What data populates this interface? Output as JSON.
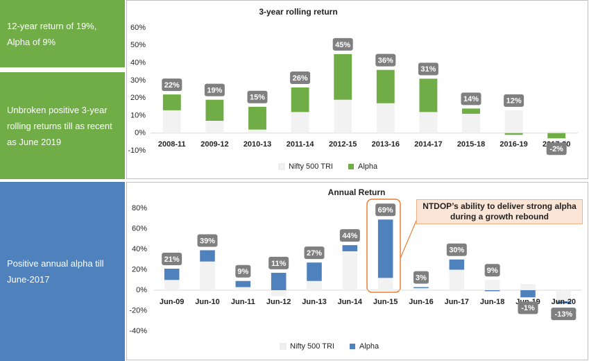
{
  "notes": [
    "12-year return of 19%,  Alpha of 9%",
    "Unbroken positive 3-year rolling returns till as recent as June 2019",
    "Positive annual alpha till June-2017"
  ],
  "chart_data": [
    {
      "type": "bar",
      "stacked": true,
      "title": "3-year rolling return",
      "categories": [
        "2008-11",
        "2009-12",
        "2010-13",
        "2011-14",
        "2012-15",
        "2013-16",
        "2014-17",
        "2015-18",
        "2016-19",
        "2017-20"
      ],
      "series": [
        {
          "name": "Nifty 500 TRI",
          "color": "#f2f2f2",
          "values": [
            13,
            7,
            2,
            12,
            19,
            17,
            12,
            11,
            13,
            1
          ]
        },
        {
          "name": "Alpha",
          "color": "#70ad47",
          "values": [
            9,
            12,
            13,
            14,
            26,
            19,
            19,
            3,
            -1,
            -3
          ]
        }
      ],
      "totals": [
        22,
        19,
        15,
        26,
        45,
        36,
        31,
        14,
        12,
        -2
      ],
      "total_labels": [
        "22%",
        "19%",
        "15%",
        "26%",
        "45%",
        "36%",
        "31%",
        "14%",
        "12%",
        "-2%"
      ],
      "ylim": [
        -10,
        60
      ],
      "yticks": [
        {
          "value": -10,
          "label": "-10%"
        },
        {
          "value": 0,
          "label": "0%"
        },
        {
          "value": 10,
          "label": "10%"
        },
        {
          "value": 20,
          "label": "20%"
        },
        {
          "value": 30,
          "label": "30%"
        },
        {
          "value": 40,
          "label": "40%"
        },
        {
          "value": 50,
          "label": "50%"
        },
        {
          "value": 60,
          "label": "60%"
        }
      ],
      "legend": "bottom"
    },
    {
      "type": "bar",
      "stacked": true,
      "title": "Annual Return",
      "categories": [
        "Jun-09",
        "Jun-10",
        "Jun-11",
        "Jun-12",
        "Jun-13",
        "Jun-14",
        "Jun-15",
        "Jun-16",
        "Jun-17",
        "Jun-18",
        "Jun-19",
        "Jun-20"
      ],
      "series": [
        {
          "name": "Nifty 500 TRI",
          "color": "#f2f2f2",
          "values": [
            10,
            28,
            3,
            -6,
            9,
            38,
            12,
            2,
            20,
            10,
            6,
            -11
          ]
        },
        {
          "name": "Alpha",
          "color": "#4f81bd",
          "values": [
            11,
            11,
            6,
            17,
            18,
            6,
            57,
            1,
            10,
            -1,
            -7,
            -2
          ]
        }
      ],
      "totals": [
        21,
        39,
        9,
        11,
        27,
        44,
        69,
        3,
        30,
        9,
        -1,
        -13
      ],
      "total_labels": [
        "21%",
        "39%",
        "9%",
        "11%",
        "27%",
        "44%",
        "69%",
        "3%",
        "30%",
        "9%",
        "-1%",
        "-13%"
      ],
      "ylim": [
        -40,
        80
      ],
      "yticks": [
        {
          "value": -40,
          "label": "-40%"
        },
        {
          "value": -20,
          "label": "-20%"
        },
        {
          "value": 0,
          "label": "0%"
        },
        {
          "value": 20,
          "label": "20%"
        },
        {
          "value": 40,
          "label": "40%"
        },
        {
          "value": 60,
          "label": "60%"
        },
        {
          "value": 80,
          "label": "80%"
        }
      ],
      "legend": "bottom",
      "annotation": "NTDOP’s ability to deliver strong alpha during a growth rebound"
    }
  ]
}
